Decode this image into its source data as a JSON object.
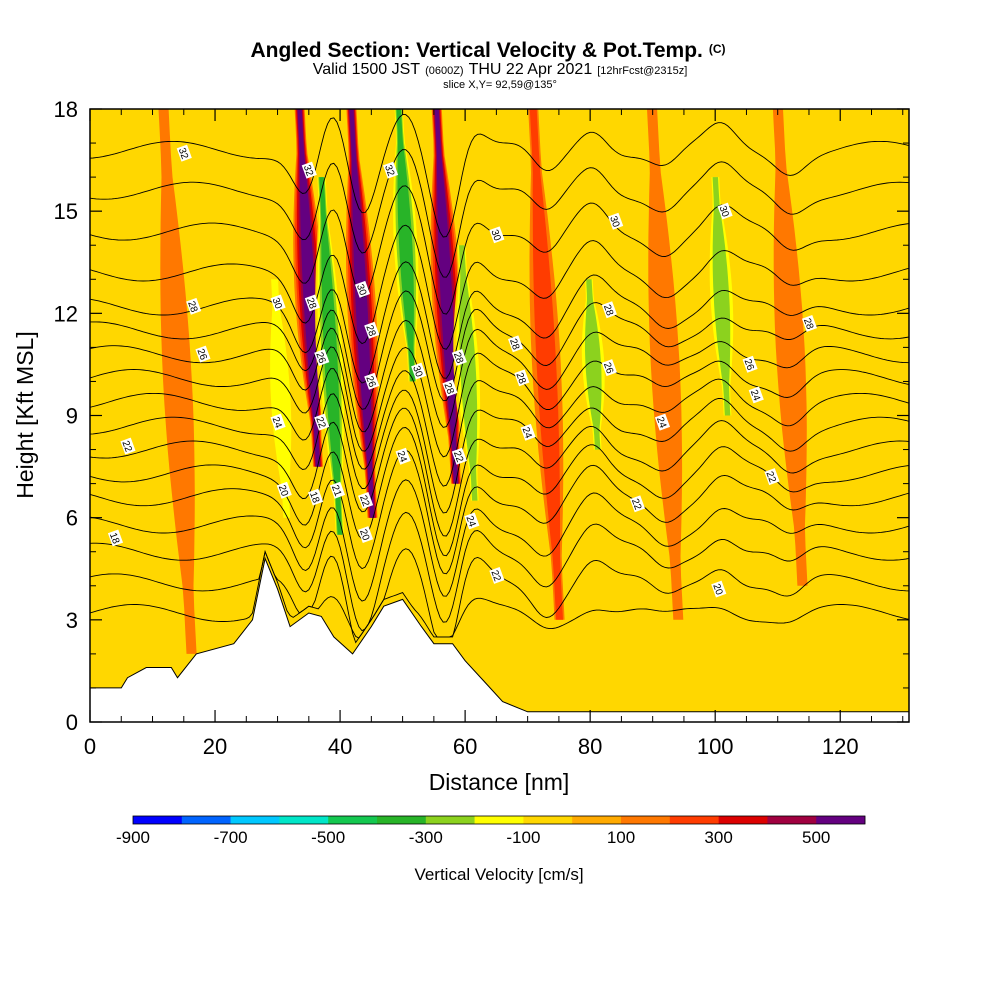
{
  "header": {
    "title_main": "Angled Section: Vertical Velocity & Pot.Temp.",
    "title_unit": "(C)",
    "subtitle_a": "Valid 1500 JST",
    "subtitle_b": "(0600Z)",
    "subtitle_c": "THU 22 Apr 2021",
    "subtitle_d": "[12hrFcst@2315z]",
    "slice": "slice X,Y= 92,59@135°"
  },
  "chart_data": {
    "type": "heatmap",
    "xlabel": "Distance [nm]",
    "ylabel": "Height [Kft MSL]",
    "xlim": [
      0,
      131
    ],
    "ylim": [
      0,
      18
    ],
    "xticks": [
      0,
      20,
      40,
      60,
      80,
      100,
      120
    ],
    "xtick_labels": [
      "0",
      "20",
      "40",
      "60",
      "80",
      "100",
      "120"
    ],
    "yticks": [
      0,
      3,
      6,
      9,
      12,
      15,
      18
    ],
    "ytick_labels": [
      "0",
      "3",
      "6",
      "9",
      "12",
      "15",
      "18"
    ],
    "colorbar": {
      "title": "Vertical Velocity [cm/s]",
      "levels": [
        -900,
        -800,
        -700,
        -600,
        -500,
        -400,
        -300,
        -200,
        -100,
        0,
        100,
        200,
        300,
        400,
        500,
        600
      ],
      "tick_values": [
        -900,
        -700,
        -500,
        -300,
        -100,
        100,
        300,
        500
      ],
      "tick_labels": [
        "-900",
        "-700",
        "-500",
        "-300",
        "-100",
        "100",
        "300",
        "500"
      ],
      "colors": [
        "#0000ff",
        "#0064ff",
        "#00c8ff",
        "#00e6c8",
        "#14c850",
        "#28b428",
        "#8cd21e",
        "#ffff00",
        "#ffd700",
        "#ffaa00",
        "#ff7800",
        "#ff3c00",
        "#dc0000",
        "#a00040",
        "#640080"
      ]
    },
    "updrafts": [
      {
        "x": 35,
        "h0": 7.5,
        "h1": 18,
        "w": 500
      },
      {
        "x": 43.5,
        "h0": 6,
        "h1": 18,
        "w": 500
      },
      {
        "x": 57,
        "h0": 7,
        "h1": 18,
        "w": 500
      },
      {
        "x": 14,
        "h0": 2,
        "h1": 18,
        "w": 100
      },
      {
        "x": 73,
        "h0": 3,
        "h1": 18,
        "w": 200
      },
      {
        "x": 92,
        "h0": 3,
        "h1": 18,
        "w": 100
      },
      {
        "x": 112,
        "h0": 4,
        "h1": 18,
        "w": 100
      }
    ],
    "downdrafts": [
      {
        "x": 38.5,
        "h0": 5.5,
        "h1": 16,
        "w": -400
      },
      {
        "x": 50.5,
        "h0": 10,
        "h1": 18,
        "w": -400
      },
      {
        "x": 60.5,
        "h0": 6.5,
        "h1": 14,
        "w": -300
      },
      {
        "x": 30.5,
        "h0": 6,
        "h1": 13,
        "w": -200
      },
      {
        "x": 80.5,
        "h0": 8,
        "h1": 13,
        "w": -300
      },
      {
        "x": 101,
        "h0": 9,
        "h1": 16,
        "w": -300
      }
    ],
    "terrain": {
      "x": [
        0,
        5,
        6,
        9,
        13,
        14,
        17,
        23,
        26,
        28,
        30,
        32,
        35,
        37,
        39,
        42,
        45,
        47,
        50,
        53,
        55,
        58,
        60,
        63,
        66,
        70,
        80,
        131
      ],
      "height": [
        1.0,
        1.0,
        1.3,
        1.6,
        1.6,
        1.3,
        2.0,
        2.3,
        3.0,
        4.8,
        3.9,
        2.8,
        3.2,
        3.1,
        2.5,
        2.0,
        2.8,
        3.4,
        3.6,
        2.8,
        2.3,
        2.3,
        1.8,
        1.2,
        0.6,
        0.3,
        0.3,
        0.3
      ]
    },
    "isentropes": {
      "levels": [
        16,
        17,
        18,
        19,
        20,
        21,
        22,
        23,
        24,
        25,
        26,
        27,
        28,
        29,
        30,
        31,
        32
      ],
      "base_height": [
        3.2,
        4.1,
        5.0,
        5.8,
        6.6,
        7.3,
        8.0,
        8.7,
        9.4,
        10.1,
        10.8,
        11.5,
        12.2,
        13.2,
        14.4,
        15.6,
        16.8
      ],
      "labels": [
        {
          "text": "32",
          "x": 15,
          "h": 16.7
        },
        {
          "text": "28",
          "x": 16.5,
          "h": 12.2
        },
        {
          "text": "26",
          "x": 18,
          "h": 10.8
        },
        {
          "text": "22",
          "x": 6,
          "h": 8.1
        },
        {
          "text": "18",
          "x": 4,
          "h": 5.4
        },
        {
          "text": "32",
          "x": 35,
          "h": 16.2
        },
        {
          "text": "32",
          "x": 48,
          "h": 16.2
        },
        {
          "text": "30",
          "x": 30,
          "h": 12.3
        },
        {
          "text": "28",
          "x": 35.5,
          "h": 12.3
        },
        {
          "text": "30",
          "x": 43.5,
          "h": 12.7
        },
        {
          "text": "28",
          "x": 45,
          "h": 11.5
        },
        {
          "text": "26",
          "x": 37,
          "h": 10.7
        },
        {
          "text": "26",
          "x": 45,
          "h": 10
        },
        {
          "text": "30",
          "x": 52.5,
          "h": 10.3
        },
        {
          "text": "28",
          "x": 59,
          "h": 10.7
        },
        {
          "text": "28",
          "x": 57.5,
          "h": 9.8
        },
        {
          "text": "24",
          "x": 30,
          "h": 8.8
        },
        {
          "text": "22",
          "x": 37,
          "h": 8.8
        },
        {
          "text": "24",
          "x": 50,
          "h": 7.8
        },
        {
          "text": "22",
          "x": 59,
          "h": 7.8
        },
        {
          "text": "20",
          "x": 31,
          "h": 6.8
        },
        {
          "text": "18",
          "x": 36,
          "h": 6.6
        },
        {
          "text": "21",
          "x": 39.5,
          "h": 6.8
        },
        {
          "text": "22",
          "x": 44,
          "h": 6.5
        },
        {
          "text": "20",
          "x": 44,
          "h": 5.5
        },
        {
          "text": "24",
          "x": 61,
          "h": 5.9
        },
        {
          "text": "22",
          "x": 65,
          "h": 4.3
        },
        {
          "text": "30",
          "x": 65,
          "h": 14.3
        },
        {
          "text": "28",
          "x": 68,
          "h": 11.1
        },
        {
          "text": "28",
          "x": 69,
          "h": 10.1
        },
        {
          "text": "24",
          "x": 70,
          "h": 8.5
        },
        {
          "text": "30",
          "x": 84,
          "h": 14.7
        },
        {
          "text": "28",
          "x": 83,
          "h": 12.1
        },
        {
          "text": "26",
          "x": 83,
          "h": 10.4
        },
        {
          "text": "24",
          "x": 91.5,
          "h": 8.8
        },
        {
          "text": "22",
          "x": 87.5,
          "h": 6.4
        },
        {
          "text": "20",
          "x": 100.5,
          "h": 3.9
        },
        {
          "text": "30",
          "x": 101.5,
          "h": 15
        },
        {
          "text": "28",
          "x": 115,
          "h": 11.7
        },
        {
          "text": "26",
          "x": 105.5,
          "h": 10.5
        },
        {
          "text": "24",
          "x": 106.5,
          "h": 9.6
        },
        {
          "text": "22",
          "x": 109,
          "h": 7.2
        }
      ]
    }
  }
}
